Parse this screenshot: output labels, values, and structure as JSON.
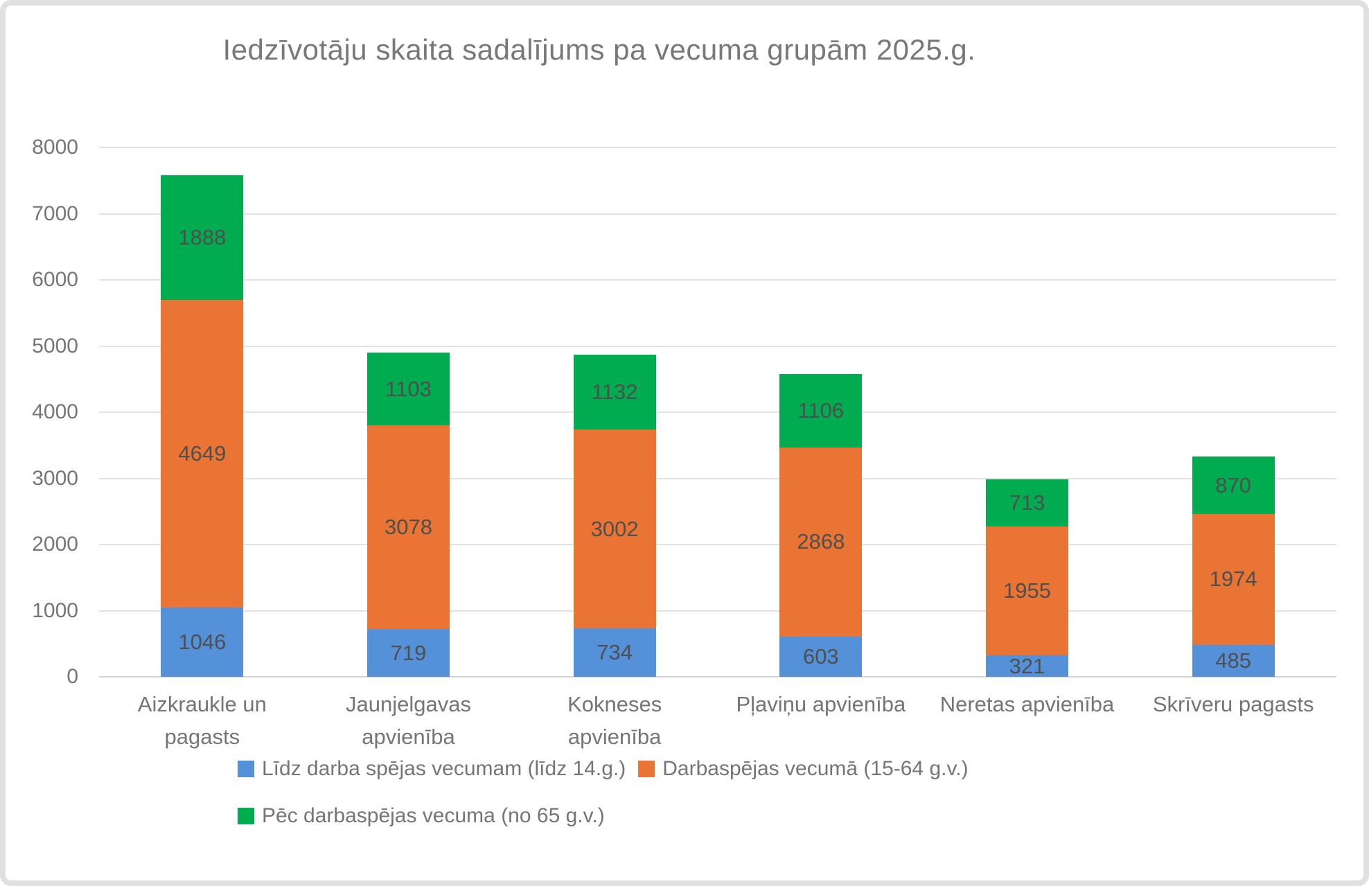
{
  "chart_data": {
    "type": "bar",
    "stacked": true,
    "title": "Iedzīvotāju skaita sadalījums pa vecuma grupām 2025.g.",
    "categories": [
      "Aizkraukle un pagasts",
      "Jaunjelgavas apvienība",
      "Kokneses apvienība",
      "Pļaviņu apvienība",
      "Neretas apvienība",
      "Skrīveru pagasts"
    ],
    "category_label_lines": [
      [
        "Aizkraukle un",
        "pagasts"
      ],
      [
        "Jaunjelgavas",
        "apvienība"
      ],
      [
        "Kokneses",
        "apvienība"
      ],
      [
        "Pļaviņu apvienība"
      ],
      [
        "Neretas apvienība"
      ],
      [
        "Skrīveru pagasts"
      ]
    ],
    "series": [
      {
        "name": "Līdz darba spējas vecumam (līdz 14.g.)",
        "color": "#5591D8",
        "values": [
          1046,
          719,
          734,
          603,
          321,
          485
        ]
      },
      {
        "name": "Darbaspējas vecumā (15-64 g.v.)",
        "color": "#EA7433",
        "values": [
          4649,
          3078,
          3002,
          2868,
          1955,
          1974
        ]
      },
      {
        "name": "Pēc darbaspējas vecuma (no 65 g.v.)",
        "color": "#00AC4F",
        "values": [
          1888,
          1103,
          1132,
          1106,
          713,
          870
        ]
      }
    ],
    "totals": [
      7583,
      4900,
      4868,
      4577,
      2989,
      3329
    ],
    "y_axis": {
      "min": 0,
      "max": 8000,
      "step": 1000,
      "tick_labels": [
        "0",
        "1000",
        "2000",
        "3000",
        "4000",
        "5000",
        "6000",
        "7000",
        "8000"
      ]
    },
    "grid": true,
    "data_labels": true,
    "legend_position": "bottom",
    "colors": {
      "grid": "#E3E3E3",
      "axis_line": "#D4D4D4",
      "title_text": "#787878",
      "axis_text": "#757575",
      "data_label_text": "#4F4F4F",
      "frame_border": "#E0E0E0",
      "background": "#FFFFFF"
    }
  }
}
